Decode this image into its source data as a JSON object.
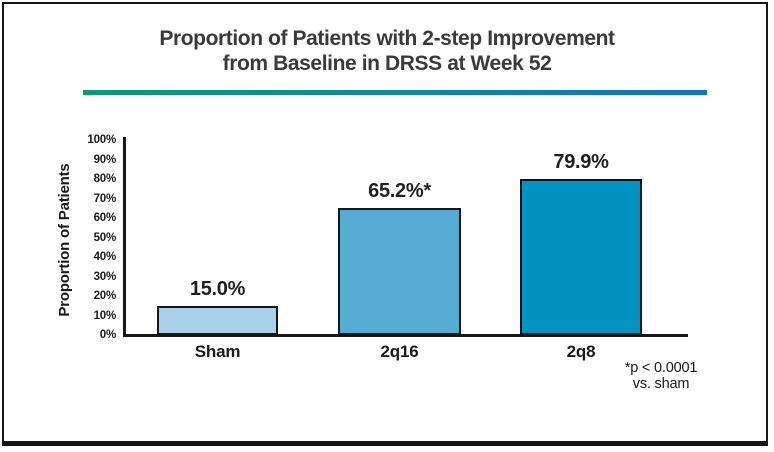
{
  "title": {
    "line1": "Proportion of Patients with 2-step Improvement",
    "line2": "from Baseline in DRSS at Week 52"
  },
  "divider": {
    "gradient_start_color": "#0d9b72",
    "gradient_end_color": "#0f73c0"
  },
  "chart_data": {
    "type": "bar",
    "title": "Proportion of Patients with 2-step Improvement from Baseline in DRSS at Week 52",
    "categories": [
      "Sham",
      "2q16",
      "2q8"
    ],
    "values": [
      15.0,
      65.2,
      79.9
    ],
    "value_labels": [
      "15.0%",
      "65.2%*",
      "79.9%"
    ],
    "bar_colors": [
      "#a9d2e8",
      "#55acd2",
      "#0093c2"
    ],
    "bar_border_color": "#161616",
    "xlabel": "",
    "ylabel": "Proportion of Patients",
    "ylim": [
      0,
      100
    ],
    "ytick_labels": [
      "0%",
      "10%",
      "20%",
      "30%",
      "40%",
      "50%",
      "60%",
      "70%",
      "80%",
      "90%",
      "100%"
    ],
    "grid": false,
    "legend_position": "none"
  },
  "footnote": {
    "line1": "*p < 0.0001",
    "line2": "vs. sham"
  }
}
